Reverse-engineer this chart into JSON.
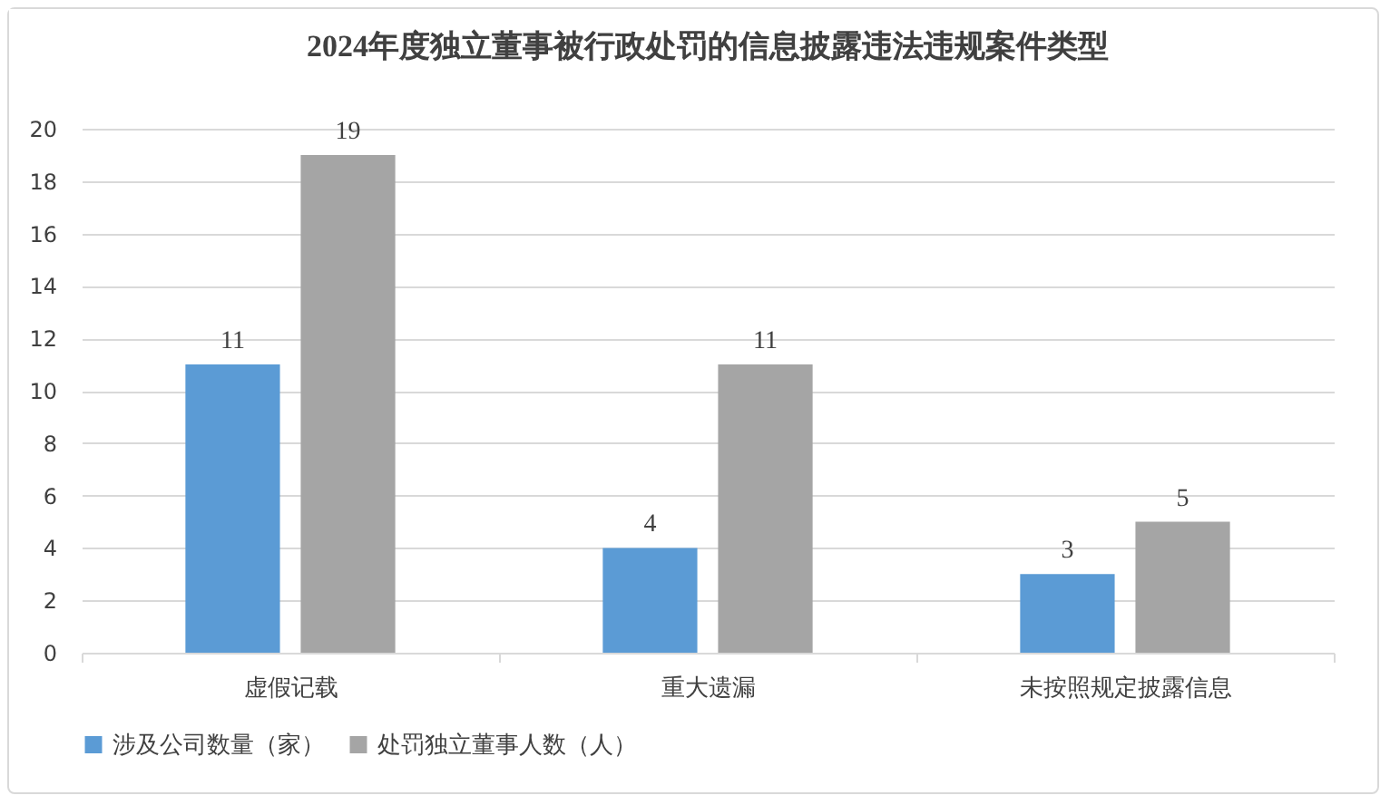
{
  "chart_data": {
    "type": "bar",
    "title": "2024年度独立董事被行政处罚的信息披露违法违规案件类型",
    "categories": [
      "虚假记载",
      "重大遗漏",
      "未按照规定披露信息"
    ],
    "series": [
      {
        "name": "涉及公司数量（家）",
        "color": "#5b9bd5",
        "values": [
          11,
          4,
          3
        ]
      },
      {
        "name": "处罚独立董事人数（人）",
        "color": "#a5a5a5",
        "values": [
          19,
          11,
          5
        ]
      }
    ],
    "ylim": [
      0,
      20
    ],
    "yticks": [
      0,
      2,
      4,
      6,
      8,
      10,
      12,
      14,
      16,
      18,
      20
    ],
    "grid": "y",
    "legend": "bottom",
    "data_labels": true
  }
}
